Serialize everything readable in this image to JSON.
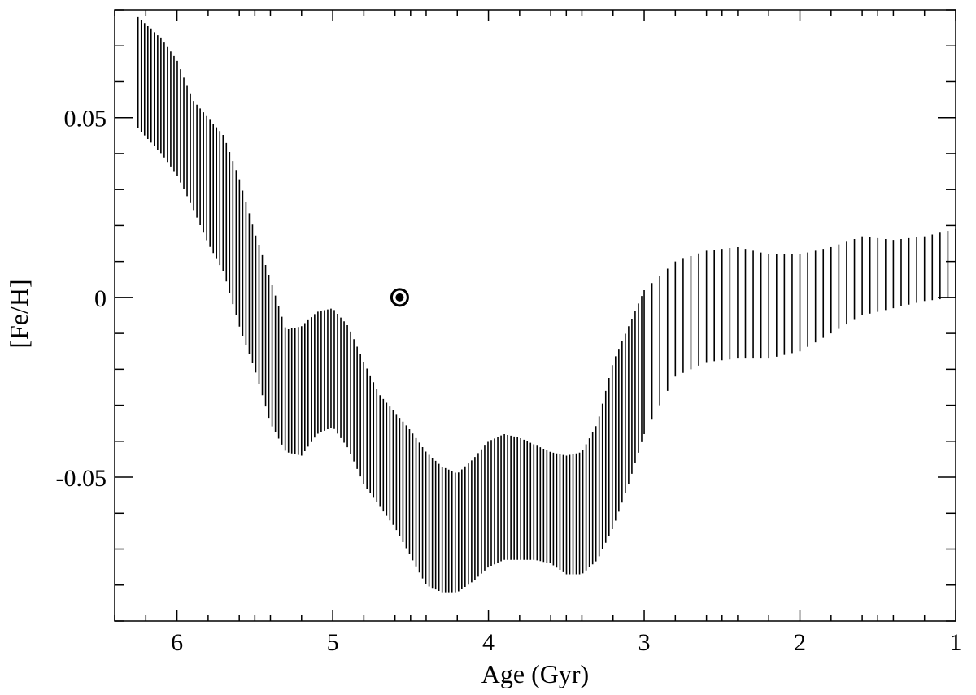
{
  "chart_data": {
    "type": "range-bar",
    "title": "",
    "xlabel": "Age (Gyr)",
    "ylabel": "[Fe/H]",
    "xlim": [
      6.4,
      1.0
    ],
    "ylim": [
      -0.09,
      0.08
    ],
    "x_reversed": true,
    "grid": false,
    "legend": "none",
    "x_ticks": [
      {
        "value": 6,
        "label": "6"
      },
      {
        "value": 5,
        "label": "5"
      },
      {
        "value": 4,
        "label": "4"
      },
      {
        "value": 3,
        "label": "3"
      },
      {
        "value": 2,
        "label": "2"
      },
      {
        "value": 1,
        "label": "1"
      }
    ],
    "y_ticks": [
      {
        "value": 0.05,
        "label": "0.05"
      },
      {
        "value": 0,
        "label": "0"
      },
      {
        "value": -0.05,
        "label": "-0.05"
      }
    ],
    "ranges": {
      "note_x_step": "bars every ~0.02 Gyr (6.25–3.0) and ~0.05 Gyr (3.0–1.0)",
      "upper_profile": [
        [
          6.25,
          0.078
        ],
        [
          6.1,
          0.072
        ],
        [
          6.0,
          0.066
        ],
        [
          5.9,
          0.055
        ],
        [
          5.8,
          0.05
        ],
        [
          5.7,
          0.045
        ],
        [
          5.6,
          0.033
        ],
        [
          5.5,
          0.018
        ],
        [
          5.4,
          0.005
        ],
        [
          5.3,
          -0.009
        ],
        [
          5.2,
          -0.008
        ],
        [
          5.1,
          -0.004
        ],
        [
          5.0,
          -0.003
        ],
        [
          4.9,
          -0.008
        ],
        [
          4.8,
          -0.018
        ],
        [
          4.7,
          -0.027
        ],
        [
          4.6,
          -0.032
        ],
        [
          4.5,
          -0.037
        ],
        [
          4.4,
          -0.043
        ],
        [
          4.3,
          -0.047
        ],
        [
          4.2,
          -0.049
        ],
        [
          4.1,
          -0.045
        ],
        [
          4.0,
          -0.04
        ],
        [
          3.9,
          -0.038
        ],
        [
          3.8,
          -0.039
        ],
        [
          3.7,
          -0.041
        ],
        [
          3.6,
          -0.043
        ],
        [
          3.5,
          -0.044
        ],
        [
          3.4,
          -0.043
        ],
        [
          3.3,
          -0.035
        ],
        [
          3.2,
          -0.018
        ],
        [
          3.1,
          -0.008
        ],
        [
          3.0,
          0.002
        ],
        [
          2.8,
          0.01
        ],
        [
          2.6,
          0.013
        ],
        [
          2.4,
          0.014
        ],
        [
          2.2,
          0.012
        ],
        [
          2.0,
          0.012
        ],
        [
          1.8,
          0.014
        ],
        [
          1.6,
          0.017
        ],
        [
          1.4,
          0.016
        ],
        [
          1.2,
          0.017
        ],
        [
          1.0,
          0.019
        ]
      ],
      "lower_profile": [
        [
          6.25,
          0.047
        ],
        [
          6.1,
          0.04
        ],
        [
          6.0,
          0.034
        ],
        [
          5.9,
          0.025
        ],
        [
          5.8,
          0.015
        ],
        [
          5.7,
          0.007
        ],
        [
          5.6,
          -0.008
        ],
        [
          5.5,
          -0.02
        ],
        [
          5.4,
          -0.035
        ],
        [
          5.3,
          -0.043
        ],
        [
          5.2,
          -0.044
        ],
        [
          5.1,
          -0.038
        ],
        [
          5.0,
          -0.036
        ],
        [
          4.9,
          -0.042
        ],
        [
          4.8,
          -0.052
        ],
        [
          4.7,
          -0.058
        ],
        [
          4.6,
          -0.064
        ],
        [
          4.5,
          -0.072
        ],
        [
          4.4,
          -0.08
        ],
        [
          4.3,
          -0.082
        ],
        [
          4.2,
          -0.082
        ],
        [
          4.1,
          -0.079
        ],
        [
          4.0,
          -0.075
        ],
        [
          3.9,
          -0.073
        ],
        [
          3.8,
          -0.073
        ],
        [
          3.7,
          -0.073
        ],
        [
          3.6,
          -0.074
        ],
        [
          3.5,
          -0.077
        ],
        [
          3.4,
          -0.077
        ],
        [
          3.3,
          -0.073
        ],
        [
          3.2,
          -0.064
        ],
        [
          3.1,
          -0.052
        ],
        [
          3.0,
          -0.038
        ],
        [
          2.8,
          -0.022
        ],
        [
          2.6,
          -0.018
        ],
        [
          2.4,
          -0.017
        ],
        [
          2.2,
          -0.017
        ],
        [
          2.0,
          -0.015
        ],
        [
          1.8,
          -0.01
        ],
        [
          1.6,
          -0.005
        ],
        [
          1.4,
          -0.003
        ],
        [
          1.2,
          -0.001
        ],
        [
          1.0,
          0.0
        ]
      ]
    },
    "markers": [
      {
        "symbol": "sun",
        "x": 4.57,
        "y": 0.0
      }
    ]
  }
}
